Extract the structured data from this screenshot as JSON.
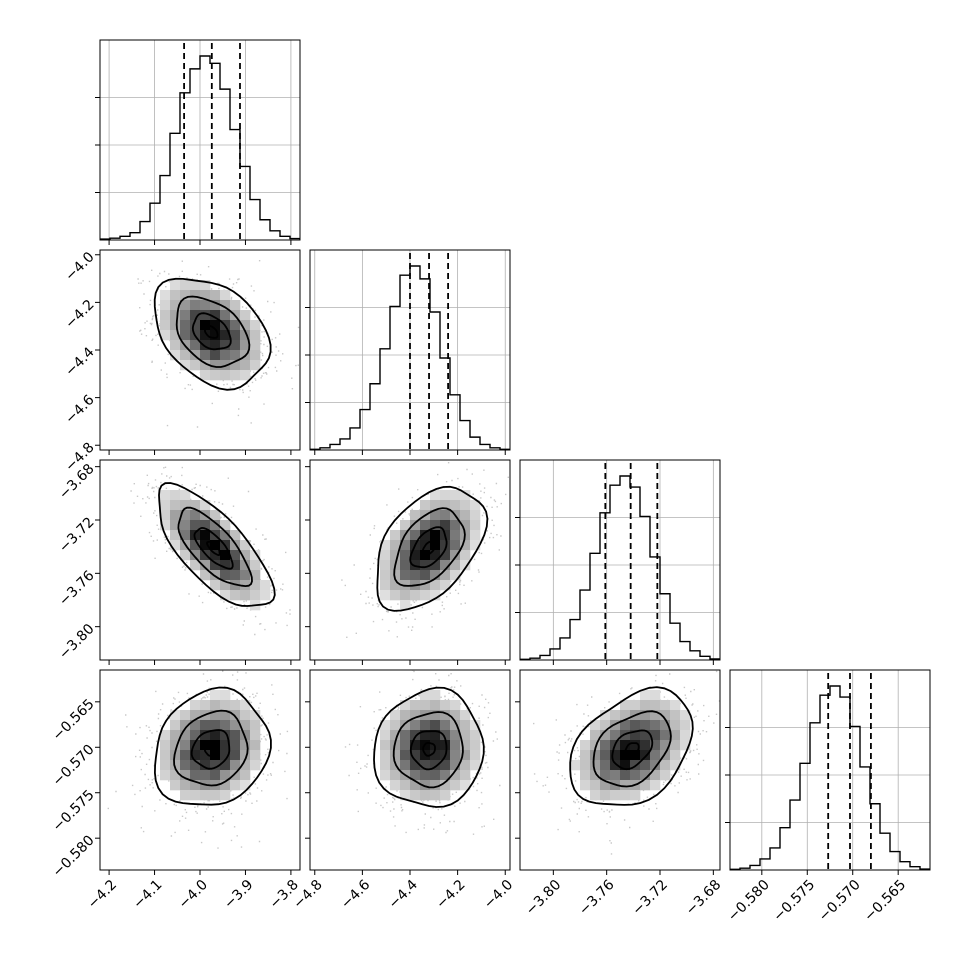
{
  "chart_data": {
    "type": "corner",
    "title": "",
    "grid": true,
    "parameters": [
      {
        "range": [
          -4.22,
          -3.78
        ],
        "ticks": [
          -4.2,
          -4.1,
          -4.0,
          -3.9,
          -3.8
        ],
        "tick_labels": [
          "−4.2",
          "−4.1",
          "−4.0",
          "−3.9",
          "−3.8"
        ],
        "quantiles": [
          -4.035,
          -3.974,
          -3.912
        ],
        "hist": {
          "edges_start": -4.22,
          "bin_width": 0.022,
          "counts": [
            0.005,
            0.01,
            0.02,
            0.04,
            0.1,
            0.2,
            0.35,
            0.58,
            0.8,
            0.93,
            1.0,
            0.96,
            0.82,
            0.6,
            0.4,
            0.22,
            0.11,
            0.05,
            0.02,
            0.008
          ]
        }
      },
      {
        "range": [
          -4.82,
          -3.98
        ],
        "ticks": [
          -4.8,
          -4.6,
          -4.4,
          -4.2,
          -4.0
        ],
        "tick_labels": [
          "−4.8",
          "−4.6",
          "−4.4",
          "−4.2",
          "−4.0"
        ],
        "quantiles": [
          -4.4,
          -4.32,
          -4.24
        ],
        "hist": {
          "edges_start": -4.82,
          "bin_width": 0.042,
          "counts": [
            0.004,
            0.012,
            0.03,
            0.06,
            0.12,
            0.22,
            0.36,
            0.55,
            0.78,
            0.95,
            1.0,
            0.93,
            0.75,
            0.5,
            0.3,
            0.16,
            0.07,
            0.03,
            0.012,
            0.004
          ]
        }
      },
      {
        "range": [
          -3.825,
          -3.675
        ],
        "ticks": [
          -3.8,
          -3.76,
          -3.72,
          -3.68
        ],
        "tick_labels": [
          "−3.80",
          "−3.76",
          "−3.72",
          "−3.68"
        ],
        "quantiles": [
          -3.761,
          -3.742,
          -3.722
        ],
        "hist": {
          "edges_start": -3.825,
          "bin_width": 0.0075,
          "counts": [
            0.004,
            0.01,
            0.025,
            0.06,
            0.12,
            0.22,
            0.38,
            0.58,
            0.8,
            0.95,
            1.0,
            0.94,
            0.78,
            0.56,
            0.36,
            0.2,
            0.1,
            0.05,
            0.02,
            0.006
          ]
        }
      },
      {
        "range": [
          -0.5835,
          -0.5615
        ],
        "ticks": [
          -0.58,
          -0.575,
          -0.57,
          -0.565
        ],
        "tick_labels": [
          "−0.580",
          "−0.575",
          "−0.570",
          "−0.565"
        ],
        "quantiles": [
          -0.5727,
          -0.5703,
          -0.568
        ],
        "hist": {
          "edges_start": -0.5835,
          "bin_width": 0.0011,
          "counts": [
            0.004,
            0.01,
            0.025,
            0.06,
            0.12,
            0.23,
            0.38,
            0.58,
            0.8,
            0.95,
            1.0,
            0.94,
            0.78,
            0.56,
            0.36,
            0.2,
            0.1,
            0.045,
            0.018,
            0.005
          ]
        }
      }
    ],
    "joint": [
      {
        "x": 0,
        "y": 1,
        "center": [
          -3.975,
          -4.325
        ],
        "sd": [
          0.055,
          0.1
        ],
        "corr": -0.35
      },
      {
        "x": 0,
        "y": 2,
        "center": [
          -3.97,
          -3.741
        ],
        "sd": [
          0.055,
          0.02
        ],
        "corr": -0.72
      },
      {
        "x": 1,
        "y": 2,
        "center": [
          -4.32,
          -3.741
        ],
        "sd": [
          0.1,
          0.02
        ],
        "corr": 0.45
      },
      {
        "x": 0,
        "y": 3,
        "center": [
          -3.975,
          -0.5702
        ],
        "sd": [
          0.055,
          0.0028
        ],
        "corr": 0.15
      },
      {
        "x": 1,
        "y": 3,
        "center": [
          -4.32,
          -0.5702
        ],
        "sd": [
          0.1,
          0.0028
        ],
        "corr": 0.05
      },
      {
        "x": 2,
        "y": 3,
        "center": [
          -3.741,
          -0.5702
        ],
        "sd": [
          0.02,
          0.0028
        ],
        "corr": 0.35
      }
    ]
  }
}
